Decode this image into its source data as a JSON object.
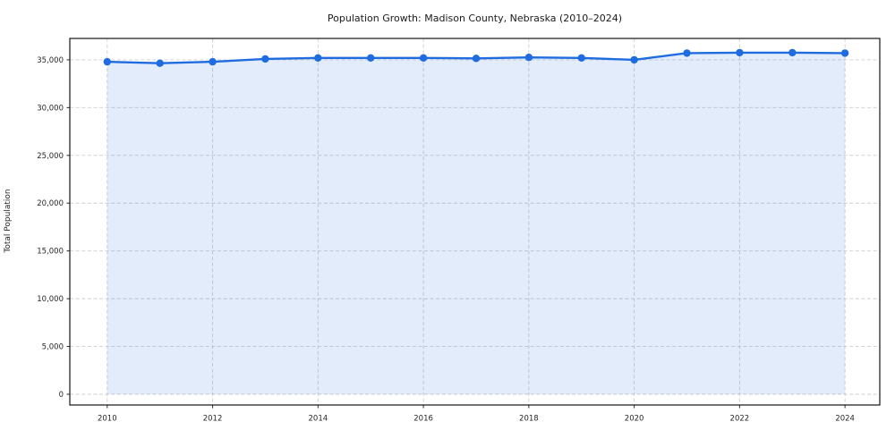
{
  "chart_data": {
    "type": "line",
    "title": "Population Growth: Madison County, Nebraska (2010–2024)",
    "xlabel": "",
    "ylabel": "Total Population",
    "x": [
      2010,
      2011,
      2012,
      2013,
      2014,
      2015,
      2016,
      2017,
      2018,
      2019,
      2020,
      2021,
      2022,
      2023,
      2024
    ],
    "values": [
      34800,
      34650,
      34800,
      35100,
      35200,
      35200,
      35200,
      35150,
      35250,
      35200,
      35000,
      35700,
      35750,
      35750,
      35700
    ],
    "series_name": "Total Population",
    "xtick_values": [
      2010,
      2012,
      2014,
      2016,
      2018,
      2020,
      2022,
      2024
    ],
    "xtick_labels": [
      "2010",
      "2012",
      "2014",
      "2016",
      "2018",
      "2020",
      "2022",
      "2024"
    ],
    "ytick_values": [
      0,
      5000,
      10000,
      15000,
      20000,
      25000,
      30000,
      35000
    ],
    "ytick_labels": [
      "0",
      "5,000",
      "10,000",
      "15,000",
      "20,000",
      "25,000",
      "30,000",
      "35,000"
    ],
    "xlim": [
      2009.29,
      2024.66
    ],
    "ylim": [
      -1123,
      37238
    ],
    "grid": "dashed, horizontal and vertical at major ticks",
    "legend": "none",
    "fill_to_zero": true,
    "colors": {
      "line": "#1f6be0",
      "marker": "#1f6be0",
      "area_fill": "rgba(31,107,224,0.13)",
      "grid": "#cdcdcd",
      "spine": "#262626",
      "tick_text": "#262626",
      "background": "#ffffff"
    }
  }
}
